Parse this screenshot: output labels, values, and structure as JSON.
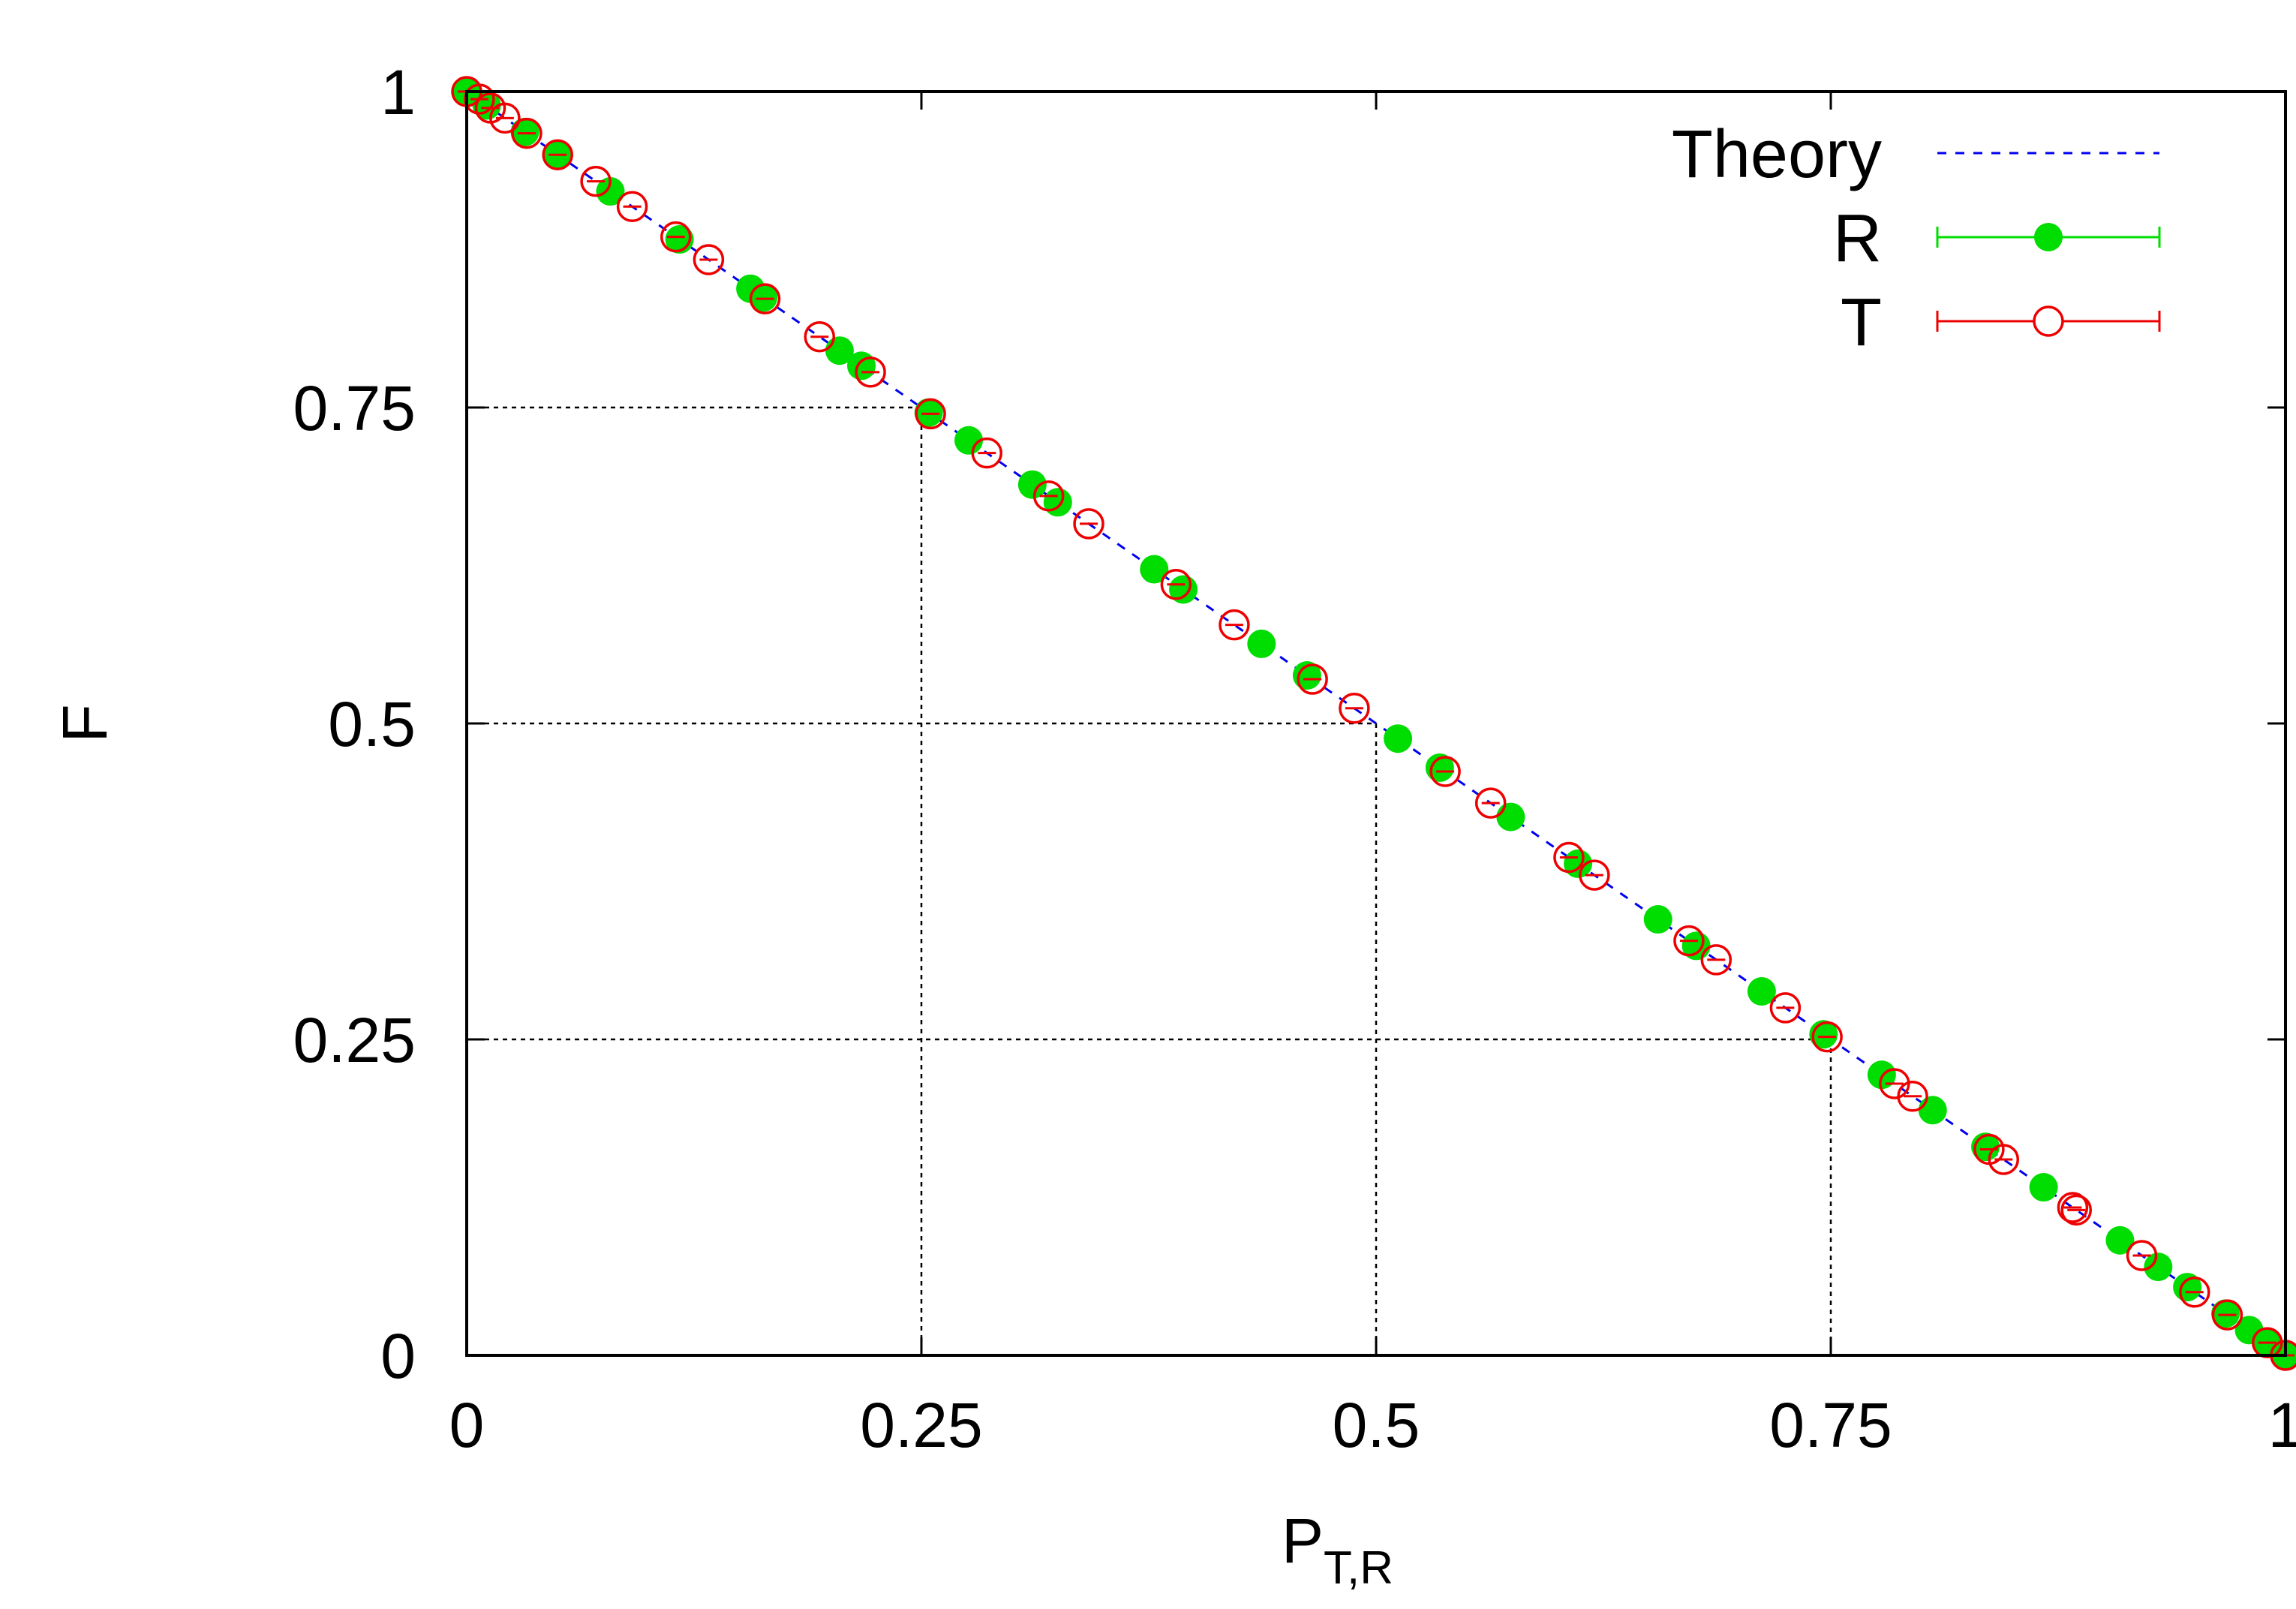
{
  "chart_data": {
    "type": "scatter",
    "xlabel": "P",
    "xlabel_subscript": "T,R",
    "ylabel": "F",
    "xlim": [
      0,
      1
    ],
    "ylim": [
      0,
      1
    ],
    "xticks": [
      "0",
      "0.25",
      "0.5",
      "0.75",
      "1"
    ],
    "yticks": [
      "0",
      "0.25",
      "0.5",
      "0.75",
      "1"
    ],
    "xtick_values": [
      0,
      0.25,
      0.5,
      0.75,
      1
    ],
    "ytick_values": [
      0,
      0.25,
      0.5,
      0.75,
      1
    ],
    "grid": false,
    "guide_lines": [
      {
        "x": 0.25,
        "y": 0.75
      },
      {
        "x": 0.5,
        "y": 0.5
      },
      {
        "x": 0.75,
        "y": 0.25
      }
    ],
    "legend_position": "top-right",
    "series": [
      {
        "name": "Theory",
        "type": "line",
        "style": "dashed",
        "color": "#0000ee",
        "x": [
          0,
          1
        ],
        "y": [
          1,
          0
        ]
      },
      {
        "name": "R",
        "type": "scatter",
        "marker": "filled-circle",
        "color": "#00dd00",
        "x": [
          0.0,
          0.011,
          0.032,
          0.05,
          0.079,
          0.117,
          0.156,
          0.163,
          0.205,
          0.217,
          0.254,
          0.276,
          0.311,
          0.325,
          0.378,
          0.394,
          0.437,
          0.462,
          0.512,
          0.535,
          0.574,
          0.611,
          0.655,
          0.676,
          0.712,
          0.746,
          0.778,
          0.806,
          0.835,
          0.867,
          0.909,
          0.93,
          0.946,
          0.967,
          0.98,
          0.99,
          1.0
        ],
        "y": [
          1.0,
          0.989,
          0.968,
          0.95,
          0.921,
          0.883,
          0.844,
          0.837,
          0.795,
          0.783,
          0.746,
          0.724,
          0.689,
          0.675,
          0.622,
          0.606,
          0.563,
          0.538,
          0.488,
          0.465,
          0.426,
          0.389,
          0.345,
          0.324,
          0.288,
          0.254,
          0.222,
          0.194,
          0.165,
          0.133,
          0.091,
          0.07,
          0.054,
          0.033,
          0.02,
          0.01,
          0.0
        ]
      },
      {
        "name": "T",
        "type": "scatter",
        "marker": "open-circle",
        "color": "#ee0000",
        "x": [
          0.0,
          0.007,
          0.013,
          0.021,
          0.033,
          0.05,
          0.071,
          0.091,
          0.115,
          0.133,
          0.164,
          0.194,
          0.222,
          0.255,
          0.286,
          0.32,
          0.342,
          0.39,
          0.422,
          0.465,
          0.488,
          0.538,
          0.563,
          0.606,
          0.62,
          0.672,
          0.687,
          0.725,
          0.748,
          0.785,
          0.795,
          0.837,
          0.845,
          0.883,
          0.885,
          0.921,
          0.95,
          0.968,
          0.99,
          1.0
        ],
        "y": [
          1.0,
          0.994,
          0.987,
          0.979,
          0.967,
          0.95,
          0.929,
          0.909,
          0.885,
          0.867,
          0.836,
          0.806,
          0.778,
          0.745,
          0.714,
          0.68,
          0.658,
          0.61,
          0.578,
          0.535,
          0.512,
          0.462,
          0.437,
          0.394,
          0.38,
          0.328,
          0.313,
          0.275,
          0.252,
          0.215,
          0.205,
          0.163,
          0.155,
          0.117,
          0.115,
          0.079,
          0.05,
          0.032,
          0.01,
          0.0
        ]
      }
    ]
  }
}
